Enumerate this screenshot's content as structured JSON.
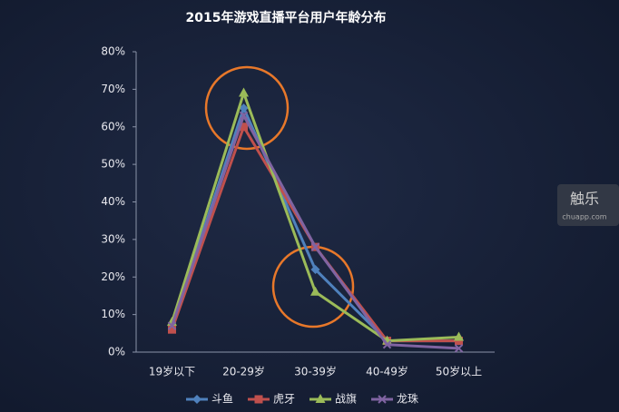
{
  "chart_data": {
    "type": "line",
    "title": "2015年游戏直播平台用户年龄分布",
    "categories": [
      "19岁以下",
      "20-29岁",
      "30-39岁",
      "40-49岁",
      "50岁以上"
    ],
    "series": [
      {
        "name": "斗鱼",
        "color": "#4f81bd",
        "marker": "diamond",
        "values": [
          7,
          65,
          22,
          3,
          3
        ]
      },
      {
        "name": "虎牙",
        "color": "#c0504d",
        "marker": "square",
        "values": [
          6,
          60,
          28,
          3,
          3
        ]
      },
      {
        "name": "战旗",
        "color": "#9bbb59",
        "marker": "triangle",
        "values": [
          8,
          69,
          16,
          3,
          4
        ]
      },
      {
        "name": "龙珠",
        "color": "#8064a2",
        "marker": "x",
        "values": [
          7,
          63,
          28,
          2,
          1
        ]
      }
    ],
    "ylim": [
      0,
      80
    ],
    "yticks": [
      {
        "value": 0,
        "label": "0%"
      },
      {
        "value": 10,
        "label": "10%"
      },
      {
        "value": 20,
        "label": "20%"
      },
      {
        "value": 30,
        "label": "30%"
      },
      {
        "value": 40,
        "label": "40%"
      },
      {
        "value": 50,
        "label": "50%"
      },
      {
        "value": 60,
        "label": "60%"
      },
      {
        "value": 70,
        "label": "70%"
      },
      {
        "value": 80,
        "label": "80%"
      }
    ],
    "legend": "bottom",
    "grid": false
  },
  "watermark": {
    "title": "触乐",
    "subtitle": "chuapp.com"
  }
}
